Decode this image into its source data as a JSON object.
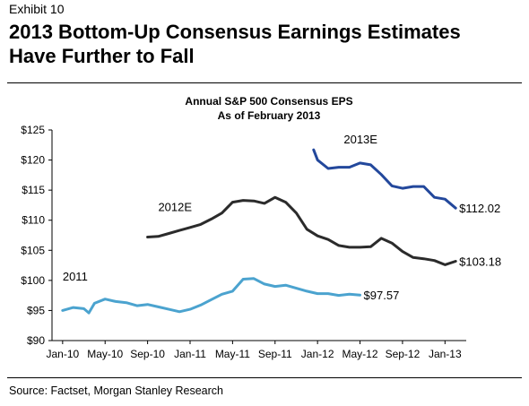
{
  "exhibit": "Exhibit 10",
  "headline_line1": "2013 Bottom-Up Consensus Earnings Estimates",
  "headline_line2": "Have Further to Fall",
  "source": "Source: Factset, Morgan Stanley Research",
  "chart_data": {
    "type": "line",
    "title": "Annual S&P 500 Consensus EPS",
    "subtitle": "As of February 2013",
    "xlabel": "",
    "ylabel": "",
    "ylim": [
      90,
      125
    ],
    "yticks": [
      "$125",
      "$120",
      "$115",
      "$110",
      "$105",
      "$100",
      "$95",
      "$90"
    ],
    "ytick_values": [
      125,
      120,
      115,
      110,
      105,
      100,
      95,
      90
    ],
    "xticks": [
      "Jan-10",
      "May-10",
      "Sep-10",
      "Jan-11",
      "May-11",
      "Sep-11",
      "Jan-12",
      "May-12",
      "Sep-12",
      "Jan-13"
    ],
    "xtick_values": [
      "2010-01",
      "2010-05",
      "2010-09",
      "2011-01",
      "2011-05",
      "2011-09",
      "2012-01",
      "2012-05",
      "2012-09",
      "2013-01"
    ],
    "xlim": [
      "2009-12",
      "2013-03"
    ],
    "grid": false,
    "legend": "none",
    "series": [
      {
        "name": "2011",
        "color": "#4ba3cf",
        "end_label": "$97.57",
        "x": [
          "2010-01",
          "2010-02",
          "2010-03",
          "2010-03-15",
          "2010-04",
          "2010-05",
          "2010-06",
          "2010-07",
          "2010-08",
          "2010-09",
          "2010-10",
          "2010-11",
          "2010-12",
          "2011-01",
          "2011-02",
          "2011-03",
          "2011-04",
          "2011-05",
          "2011-06",
          "2011-07",
          "2011-08",
          "2011-09",
          "2011-10",
          "2011-11",
          "2011-12",
          "2012-01",
          "2012-02",
          "2012-03",
          "2012-04",
          "2012-05"
        ],
        "y": [
          95.0,
          95.5,
          95.3,
          94.6,
          96.2,
          96.9,
          96.5,
          96.3,
          95.8,
          96.0,
          95.6,
          95.2,
          94.8,
          95.2,
          95.9,
          96.8,
          97.7,
          98.2,
          100.2,
          100.3,
          99.4,
          99.0,
          99.2,
          98.7,
          98.2,
          97.8,
          97.8,
          97.5,
          97.7,
          97.57
        ]
      },
      {
        "name": "2012E",
        "color": "#2b2b2b",
        "end_label": "$103.18",
        "x": [
          "2010-09",
          "2010-10",
          "2010-11",
          "2010-12",
          "2011-01",
          "2011-02",
          "2011-03",
          "2011-04",
          "2011-05",
          "2011-06",
          "2011-07",
          "2011-08",
          "2011-09",
          "2011-10",
          "2011-11",
          "2011-12",
          "2012-01",
          "2012-02",
          "2012-03",
          "2012-04",
          "2012-05",
          "2012-06",
          "2012-07",
          "2012-08",
          "2012-09",
          "2012-10",
          "2012-11",
          "2012-12",
          "2013-01",
          "2013-02"
        ],
        "y": [
          107.2,
          107.3,
          107.8,
          108.3,
          108.8,
          109.3,
          110.2,
          111.2,
          113.0,
          113.3,
          113.2,
          112.8,
          113.8,
          113.0,
          111.2,
          108.5,
          107.4,
          106.8,
          105.8,
          105.5,
          105.5,
          105.6,
          107.0,
          106.2,
          104.8,
          103.8,
          103.6,
          103.3,
          102.6,
          103.18
        ]
      },
      {
        "name": "2013E",
        "color": "#23489c",
        "end_label": "$112.02",
        "x": [
          "2011-12-20",
          "2012-01",
          "2012-02",
          "2012-03",
          "2012-04",
          "2012-05",
          "2012-06",
          "2012-07",
          "2012-08",
          "2012-09",
          "2012-10",
          "2012-11",
          "2012-12",
          "2013-01",
          "2013-02"
        ],
        "y": [
          121.7,
          120.0,
          118.6,
          118.8,
          118.8,
          119.5,
          119.2,
          117.6,
          115.7,
          115.3,
          115.6,
          115.6,
          113.8,
          113.5,
          112.02
        ]
      }
    ],
    "annotations": [
      {
        "text": "2011",
        "series": "2011"
      },
      {
        "text": "2012E",
        "series": "2012E"
      },
      {
        "text": "2013E",
        "series": "2013E"
      }
    ]
  }
}
